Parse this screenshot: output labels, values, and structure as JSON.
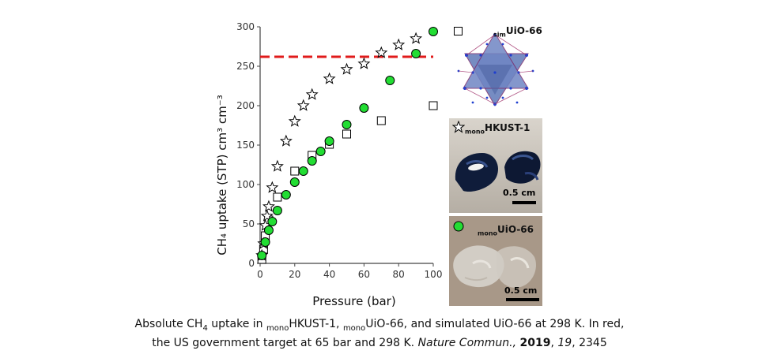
{
  "chart_data": {
    "type": "scatter",
    "xlabel": "Pressure (bar)",
    "ylabel": "CH₄ uptake (STP) cm³ cm⁻³",
    "xlim": [
      0,
      100
    ],
    "ylim": [
      0,
      300
    ],
    "xticks": [
      0,
      20,
      40,
      60,
      80,
      100
    ],
    "yticks": [
      0,
      50,
      100,
      150,
      200,
      250,
      300
    ],
    "target_line": {
      "y": 262,
      "color": "#e01b1b",
      "style": "dashed",
      "xrange": [
        0,
        100
      ]
    },
    "series": [
      {
        "name": "simUiO-66",
        "marker": "square",
        "x": [
          1,
          2,
          3,
          5,
          10,
          20,
          30,
          40,
          50,
          70,
          100
        ],
        "y": [
          5,
          18,
          35,
          55,
          84,
          117,
          137,
          151,
          164,
          181,
          200
        ]
      },
      {
        "name": "monoHKUST-1",
        "marker": "star",
        "x": [
          1,
          2,
          3,
          4,
          5,
          7,
          10,
          15,
          20,
          25,
          30,
          40,
          50,
          60,
          70,
          80,
          90
        ],
        "y": [
          10,
          25,
          48,
          60,
          72,
          96,
          123,
          155,
          180,
          200,
          214,
          234,
          246,
          253,
          267,
          277,
          285
        ]
      },
      {
        "name": "monoUiO-66",
        "marker": "circle",
        "color": "#22dd33",
        "x": [
          1,
          3,
          5,
          7,
          10,
          15,
          20,
          25,
          30,
          35,
          40,
          50,
          60,
          75,
          90,
          100
        ],
        "y": [
          10,
          27,
          42,
          53,
          67,
          87,
          103,
          117,
          130,
          142,
          155,
          176,
          197,
          232,
          266,
          294
        ]
      }
    ]
  },
  "legend": {
    "sim_uio": {
      "prefix": "sim",
      "name": "UiO-66"
    },
    "hkust": {
      "prefix": "mono",
      "name": "HKUST-1"
    },
    "mono_uio": {
      "prefix": "mono",
      "name": "UiO-66"
    }
  },
  "scale_bars": [
    "0.5 cm",
    "0.5 cm"
  ],
  "caption": {
    "part1": "Absolute CH",
    "sub4": "4",
    "part2": " uptake in ",
    "mono1": "mono",
    "hkust": "HKUST-1, ",
    "mono2": "mono",
    "part3": "UiO-66, and simulated UiO-66 at 298 K. In red,",
    "line2a": "the US government target at 65 bar and 298 K. ",
    "journal": "Nature Commun.,",
    "space": " ",
    "year": "2019",
    "comma": ", ",
    "volume": "19",
    "pages": ", 2345"
  },
  "colors": {
    "green": "#22dd33",
    "red": "#e01b1b",
    "framework": "#5f79b8"
  }
}
